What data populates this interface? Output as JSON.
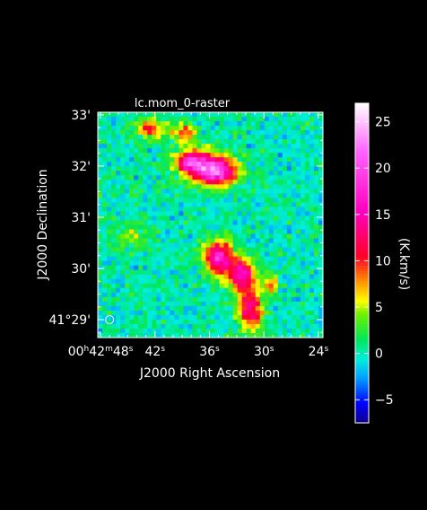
{
  "chart_data": {
    "type": "heatmap",
    "title": "lc.mom_0-raster",
    "xlabel": "J2000 Right Ascension",
    "ylabel": "J2000 Declination",
    "x_ticks": [
      {
        "value": 48,
        "parts": [
          "00",
          "h",
          "42",
          "m",
          "48",
          "s"
        ]
      },
      {
        "value": 42,
        "parts": [
          "42",
          "s"
        ]
      },
      {
        "value": 36,
        "parts": [
          "36",
          "s"
        ]
      },
      {
        "value": 30,
        "parts": [
          "30",
          "s"
        ]
      },
      {
        "value": 24,
        "parts": [
          "24",
          "s"
        ]
      }
    ],
    "y_ticks": [
      {
        "value": 29,
        "label": "41°29'"
      },
      {
        "value": 30,
        "label": "30'"
      },
      {
        "value": 31,
        "label": "31'"
      },
      {
        "value": 32,
        "label": "32'"
      },
      {
        "value": 33,
        "label": "33'"
      }
    ],
    "xlim": [
      48.3,
      23.5
    ],
    "ylim": [
      28.65,
      33.05
    ],
    "colorbar": {
      "label": "(K.km/s)",
      "range": [
        -7.5,
        27
      ],
      "ticks": [
        -5,
        0,
        5,
        10,
        15,
        20,
        25
      ]
    },
    "sources": [
      {
        "ra_s": 42.5,
        "dec_min": 32.72,
        "sigma_ra": 1.0,
        "sigma_dec": 0.14,
        "peak": 11
      },
      {
        "ra_s": 38.9,
        "dec_min": 32.66,
        "sigma_ra": 1.0,
        "sigma_dec": 0.14,
        "peak": 9
      },
      {
        "ra_s": 37.3,
        "dec_min": 32.06,
        "sigma_ra": 1.8,
        "sigma_dec": 0.2,
        "peak": 14
      },
      {
        "ra_s": 35.2,
        "dec_min": 31.88,
        "sigma_ra": 1.6,
        "sigma_dec": 0.18,
        "peak": 18
      },
      {
        "ra_s": 38.3,
        "dec_min": 32.08,
        "sigma_ra": 0.7,
        "sigma_dec": 0.09,
        "peak": 8
      },
      {
        "ra_s": 35.0,
        "dec_min": 30.22,
        "sigma_ra": 1.1,
        "sigma_dec": 0.24,
        "peak": 17
      },
      {
        "ra_s": 32.5,
        "dec_min": 29.88,
        "sigma_ra": 1.1,
        "sigma_dec": 0.22,
        "peak": 15
      },
      {
        "ra_s": 31.5,
        "dec_min": 29.2,
        "sigma_ra": 1.0,
        "sigma_dec": 0.28,
        "peak": 14
      },
      {
        "ra_s": 29.2,
        "dec_min": 29.7,
        "sigma_ra": 0.6,
        "sigma_dec": 0.14,
        "peak": 8
      },
      {
        "ra_s": 44.5,
        "dec_min": 30.6,
        "sigma_ra": 1.5,
        "sigma_dec": 0.2,
        "peak": 4
      }
    ],
    "beam": {
      "ra_s": 47.0,
      "dec_min": 29.0
    }
  }
}
